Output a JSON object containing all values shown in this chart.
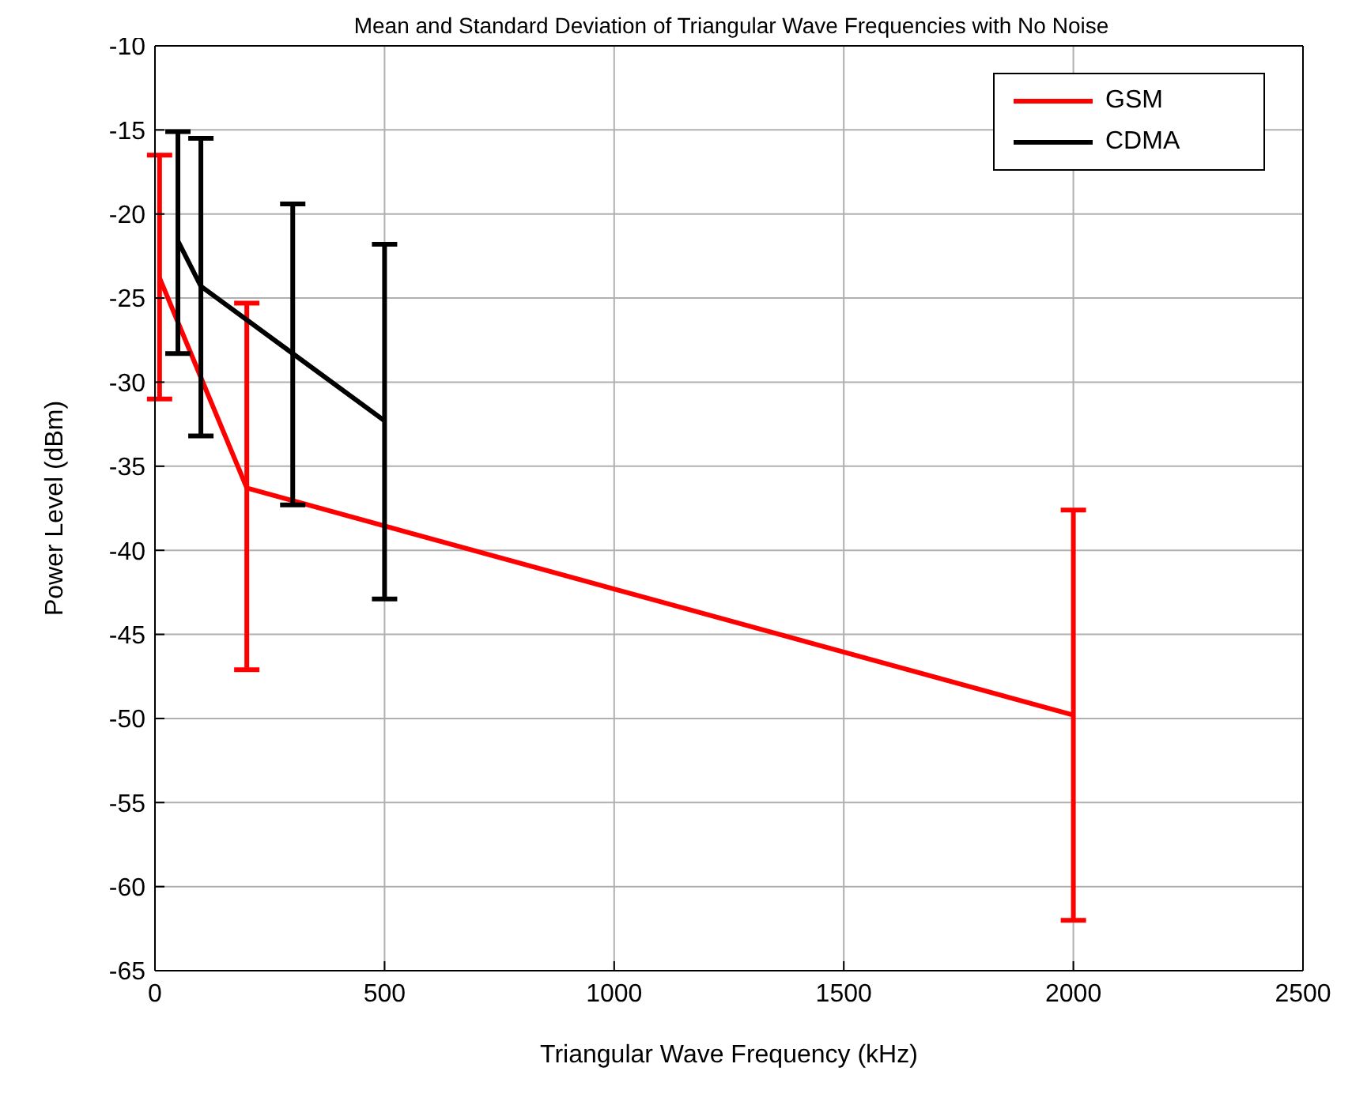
{
  "chart_data": {
    "type": "line",
    "title": "Mean and Standard Deviation of Triangular Wave Frequencies with No Noise",
    "xlabel": "Triangular Wave Frequency (kHz)",
    "ylabel": "Power Level (dBm)",
    "xlim": [
      0,
      2500
    ],
    "xticks": [
      0,
      500,
      1000,
      1500,
      2000,
      2500
    ],
    "ylim": [
      -65,
      -10
    ],
    "yticks": [
      -65,
      -60,
      -55,
      -50,
      -45,
      -40,
      -35,
      -30,
      -25,
      -20,
      -15,
      -10
    ],
    "grid": true,
    "legend": "top right",
    "marker": "none",
    "line_style": "solid",
    "series": [
      {
        "name": "GSM",
        "color": "#ff0000",
        "x": [
          10,
          200,
          2000
        ],
        "values": [
          -23.8,
          -36.3,
          -49.8
        ],
        "errors": [
          [
            -31,
            -16.5
          ],
          [
            -47.1,
            -25.3
          ],
          [
            -62,
            -37.6
          ]
        ]
      },
      {
        "name": "CDMA",
        "color": "#000000",
        "x": [
          50,
          100,
          300,
          500
        ],
        "values": [
          -21.6,
          -24.3,
          -28.3,
          -32.3
        ],
        "errors": [
          [
            -28.3,
            -15.1
          ],
          [
            -33.2,
            -15.5
          ],
          [
            -37.3,
            -19.4
          ],
          [
            -42.9,
            -21.8
          ]
        ]
      }
    ]
  }
}
